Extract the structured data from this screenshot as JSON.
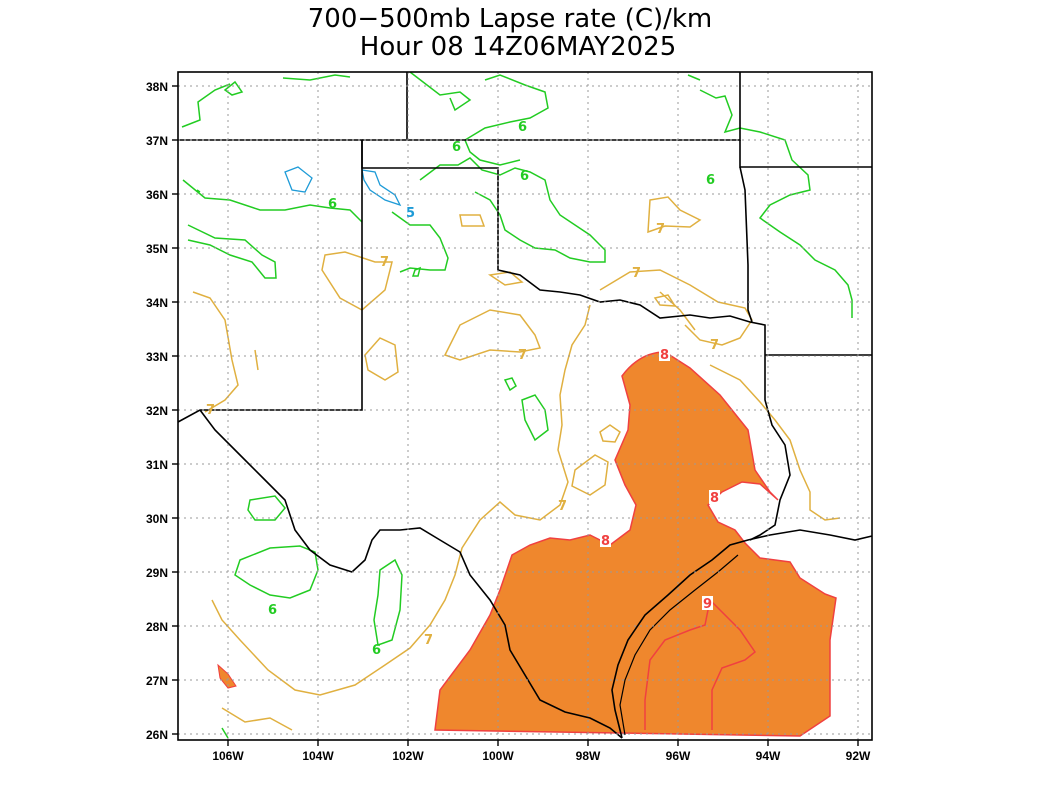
{
  "title": {
    "line1": "700−500mb Lapse rate (C)/km",
    "line2": "Hour 08  14Z06MAY2025"
  },
  "axes": {
    "lat_labels": [
      "38N",
      "37N",
      "36N",
      "35N",
      "34N",
      "33N",
      "32N",
      "31N",
      "30N",
      "29N",
      "28N",
      "27N",
      "26N"
    ],
    "lon_labels": [
      "106W",
      "104W",
      "102W",
      "100W",
      "98W",
      "96W",
      "94W",
      "92W"
    ]
  },
  "contour_labels": {
    "six": "6",
    "five": "5",
    "seven": "7",
    "eight": "8",
    "nine": "9"
  },
  "colors": {
    "contour_5": "#1e9bd7",
    "contour_6": "#22cc22",
    "contour_7": "#e0b040",
    "contour_8": "#f04040",
    "fill_8": "#ef872d",
    "boundary": "#000000",
    "grid": "#9a9a9a"
  }
}
